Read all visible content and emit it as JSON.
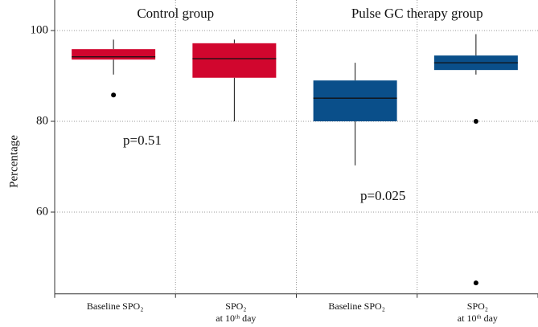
{
  "chart_data": {
    "type": "box",
    "ylabel": "Percentage",
    "categories": [
      [
        "Baseline SPO₂"
      ],
      [
        "SPO₂",
        "at 10ᵗʰ day"
      ],
      [
        "Baseline SPO₂"
      ],
      [
        "SPO₂",
        "at 10ᵗʰ day"
      ]
    ],
    "series": [
      {
        "name": "Control group",
        "color": "#d1062e",
        "min": [
          90.3,
          80
        ],
        "q1": [
          93.6,
          89.6
        ],
        "median": [
          94.2,
          93.8
        ],
        "q3": [
          95.9,
          97.2
        ],
        "max": [
          98,
          98
        ],
        "outliers": [
          [
            85.8
          ],
          []
        ]
      },
      {
        "name": "Pulse GC therapy group",
        "color": "#0a4f8a",
        "min": [
          70.3,
          90.3
        ],
        "q1": [
          80,
          91.3
        ],
        "median": [
          85.1,
          92.9
        ],
        "q3": [
          89,
          94.5
        ],
        "max": [
          92.9,
          99.2
        ],
        "outliers": [
          [],
          [
            80,
            44.4
          ]
        ]
      }
    ],
    "annotations": [
      "p=0.51",
      "p=0.025"
    ],
    "ylim": [
      42,
      100
    ],
    "yticks": [
      60,
      80,
      100
    ],
    "grid": true
  }
}
